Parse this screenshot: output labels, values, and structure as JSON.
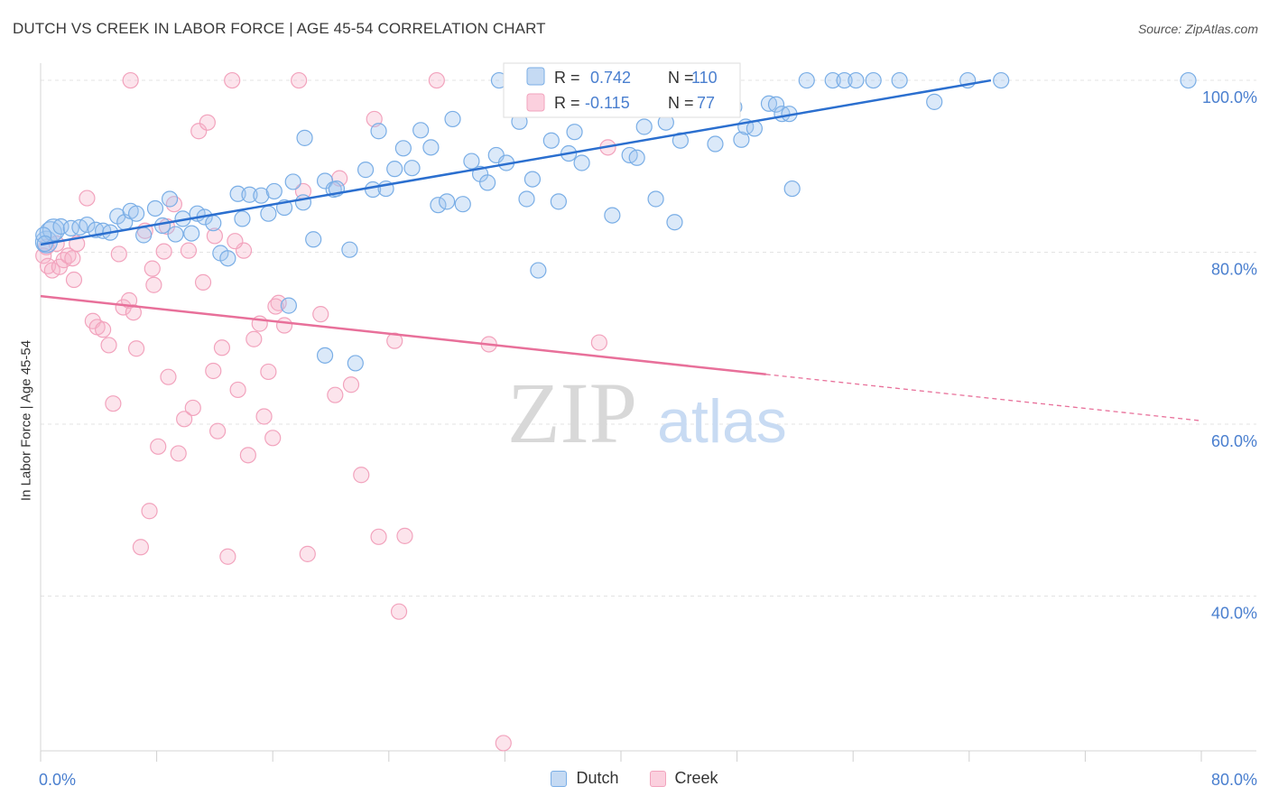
{
  "title": "DUTCH VS CREEK IN LABOR FORCE | AGE 45-54 CORRELATION CHART",
  "source": "Source: ZipAtlas.com",
  "watermark": {
    "zip": "ZIP",
    "atlas": "atlas"
  },
  "chart_data": {
    "type": "scatter",
    "ylabel": "In Labor Force | Age 45-54",
    "xlim": [
      0,
      80
    ],
    "ylim": [
      22,
      102
    ],
    "x_tick_labels": [
      "0.0%",
      "80.0%"
    ],
    "y_ticks": [
      {
        "value": 100,
        "label": "100.0%"
      },
      {
        "value": 80,
        "label": "80.0%"
      },
      {
        "value": 60,
        "label": "60.0%"
      },
      {
        "value": 40,
        "label": "40.0%"
      }
    ],
    "grid": true,
    "colors": {
      "dutch": "#7aaee6",
      "creek": "#f2a3bd",
      "dutch_line": "#2b6fcf",
      "creek_line": "#e8709a",
      "tick_text": "#4a7fcf"
    },
    "legend_stats": [
      {
        "series": "dutch",
        "r_label": "R =",
        "r_value": "0.742",
        "n_label": "N =",
        "n_value": "110"
      },
      {
        "series": "creek",
        "r_label": "R =",
        "r_value": "-0.115",
        "n_label": "N =",
        "n_value": "77"
      }
    ],
    "bottom_legend": [
      "Dutch",
      "Creek"
    ],
    "series": [
      {
        "name": "Dutch",
        "trend": {
          "x1": 0,
          "y1": 80.9,
          "x2": 65.5,
          "y2": 100.0
        },
        "points": [
          [
            0.4,
            81.2
          ],
          [
            0.7,
            82.3
          ],
          [
            0.9,
            82.6
          ],
          [
            1.4,
            83.0
          ],
          [
            2.1,
            82.8
          ],
          [
            2.7,
            82.9
          ],
          [
            3.2,
            83.2
          ],
          [
            3.8,
            82.6
          ],
          [
            4.3,
            82.5
          ],
          [
            4.8,
            82.3
          ],
          [
            5.3,
            84.2
          ],
          [
            5.8,
            83.5
          ],
          [
            6.2,
            84.8
          ],
          [
            6.6,
            84.5
          ],
          [
            7.1,
            82.0
          ],
          [
            7.9,
            85.1
          ],
          [
            8.4,
            83.1
          ],
          [
            8.9,
            86.2
          ],
          [
            9.3,
            82.1
          ],
          [
            9.8,
            83.9
          ],
          [
            10.4,
            82.2
          ],
          [
            10.8,
            84.5
          ],
          [
            11.3,
            84.1
          ],
          [
            11.9,
            83.4
          ],
          [
            12.4,
            79.9
          ],
          [
            12.9,
            79.3
          ],
          [
            13.6,
            86.8
          ],
          [
            13.9,
            83.9
          ],
          [
            14.4,
            86.7
          ],
          [
            15.2,
            86.6
          ],
          [
            15.7,
            84.5
          ],
          [
            16.1,
            87.1
          ],
          [
            16.8,
            85.2
          ],
          [
            17.4,
            88.2
          ],
          [
            18.1,
            85.8
          ],
          [
            18.2,
            93.3
          ],
          [
            18.8,
            81.5
          ],
          [
            19.6,
            88.3
          ],
          [
            20.2,
            87.3
          ],
          [
            20.4,
            87.4
          ],
          [
            21.3,
            80.3
          ],
          [
            22.4,
            89.6
          ],
          [
            22.9,
            87.3
          ],
          [
            23.3,
            94.1
          ],
          [
            23.8,
            87.4
          ],
          [
            24.4,
            89.7
          ],
          [
            25.0,
            92.1
          ],
          [
            25.6,
            89.8
          ],
          [
            26.2,
            94.2
          ],
          [
            26.9,
            92.2
          ],
          [
            27.4,
            85.5
          ],
          [
            28.0,
            85.9
          ],
          [
            28.4,
            95.5
          ],
          [
            29.1,
            85.6
          ],
          [
            29.7,
            90.6
          ],
          [
            30.3,
            89.1
          ],
          [
            30.8,
            88.1
          ],
          [
            31.4,
            91.3
          ],
          [
            31.6,
            100.0
          ],
          [
            32.1,
            90.4
          ],
          [
            33.0,
            95.2
          ],
          [
            33.5,
            86.2
          ],
          [
            33.9,
            88.5
          ],
          [
            34.3,
            77.9
          ],
          [
            35.2,
            93.0
          ],
          [
            35.7,
            85.9
          ],
          [
            36.4,
            91.5
          ],
          [
            36.8,
            94.0
          ],
          [
            37.3,
            90.4
          ],
          [
            37.7,
            100.0
          ],
          [
            38.5,
            100.0
          ],
          [
            39.0,
            99.8
          ],
          [
            39.4,
            84.3
          ],
          [
            40.3,
            100.0
          ],
          [
            40.6,
            91.3
          ],
          [
            41.1,
            91.0
          ],
          [
            41.6,
            94.6
          ],
          [
            42.4,
            86.2
          ],
          [
            43.1,
            95.1
          ],
          [
            43.7,
            83.5
          ],
          [
            44.1,
            93.0
          ],
          [
            44.9,
            100.0
          ],
          [
            45.5,
            97.1
          ],
          [
            45.9,
            97.0
          ],
          [
            46.5,
            92.6
          ],
          [
            47.0,
            99.2
          ],
          [
            47.8,
            96.9
          ],
          [
            48.3,
            93.1
          ],
          [
            48.6,
            94.6
          ],
          [
            49.2,
            94.4
          ],
          [
            50.2,
            97.3
          ],
          [
            50.7,
            97.2
          ],
          [
            51.1,
            96.1
          ],
          [
            51.6,
            96.1
          ],
          [
            51.8,
            87.4
          ],
          [
            52.8,
            100.0
          ],
          [
            54.6,
            100.0
          ],
          [
            55.4,
            100.0
          ],
          [
            56.2,
            100.0
          ],
          [
            57.4,
            100.0
          ],
          [
            59.2,
            100.0
          ],
          [
            61.6,
            97.5
          ],
          [
            63.9,
            100.0
          ],
          [
            66.2,
            100.0
          ],
          [
            79.1,
            100.0
          ],
          [
            0.2,
            82.0
          ],
          [
            17.1,
            73.8
          ],
          [
            19.6,
            68.0
          ],
          [
            21.7,
            67.1
          ],
          [
            0.3,
            81.0
          ]
        ]
      },
      {
        "name": "Creek",
        "trend": {
          "x1": 0,
          "y1": 74.9,
          "x2": 50.0,
          "y2": 65.8,
          "x3": 80,
          "y3": 60.4
        },
        "points": [
          [
            0.2,
            79.6
          ],
          [
            0.5,
            78.4
          ],
          [
            0.8,
            77.9
          ],
          [
            1.1,
            81.0
          ],
          [
            1.3,
            78.3
          ],
          [
            1.6,
            79.1
          ],
          [
            1.9,
            79.6
          ],
          [
            2.2,
            79.3
          ],
          [
            2.3,
            76.8
          ],
          [
            2.5,
            81.0
          ],
          [
            3.2,
            86.3
          ],
          [
            3.6,
            72.0
          ],
          [
            3.9,
            71.3
          ],
          [
            4.3,
            71.0
          ],
          [
            4.7,
            69.2
          ],
          [
            5.0,
            62.4
          ],
          [
            5.4,
            79.8
          ],
          [
            5.7,
            73.6
          ],
          [
            6.1,
            74.4
          ],
          [
            6.2,
            100.0
          ],
          [
            6.6,
            68.8
          ],
          [
            6.9,
            45.7
          ],
          [
            7.2,
            82.5
          ],
          [
            7.5,
            49.9
          ],
          [
            7.8,
            76.2
          ],
          [
            8.1,
            57.4
          ],
          [
            8.5,
            80.1
          ],
          [
            8.8,
            65.5
          ],
          [
            9.2,
            85.6
          ],
          [
            9.5,
            56.6
          ],
          [
            9.9,
            60.6
          ],
          [
            10.2,
            80.2
          ],
          [
            10.5,
            61.9
          ],
          [
            10.9,
            94.1
          ],
          [
            11.2,
            76.5
          ],
          [
            11.5,
            95.1
          ],
          [
            11.9,
            66.2
          ],
          [
            12.2,
            59.2
          ],
          [
            12.5,
            68.9
          ],
          [
            12.9,
            44.6
          ],
          [
            13.2,
            100.0
          ],
          [
            13.6,
            64.0
          ],
          [
            14.0,
            80.2
          ],
          [
            14.3,
            56.4
          ],
          [
            14.7,
            69.9
          ],
          [
            15.1,
            71.7
          ],
          [
            15.4,
            60.9
          ],
          [
            15.7,
            66.1
          ],
          [
            16.0,
            58.4
          ],
          [
            16.4,
            74.1
          ],
          [
            16.8,
            71.5
          ],
          [
            18.1,
            87.1
          ],
          [
            18.4,
            44.9
          ],
          [
            19.3,
            72.8
          ],
          [
            20.3,
            63.4
          ],
          [
            20.6,
            88.6
          ],
          [
            21.4,
            64.6
          ],
          [
            22.1,
            54.1
          ],
          [
            23.0,
            95.5
          ],
          [
            23.3,
            46.9
          ],
          [
            24.4,
            69.7
          ],
          [
            24.7,
            38.2
          ],
          [
            25.1,
            47.0
          ],
          [
            27.3,
            100.0
          ],
          [
            30.9,
            69.3
          ],
          [
            31.9,
            22.9
          ],
          [
            38.5,
            69.5
          ],
          [
            39.1,
            92.2
          ],
          [
            45.1,
            100.0
          ],
          [
            17.8,
            100.0
          ],
          [
            6.4,
            73.0
          ],
          [
            7.7,
            78.1
          ],
          [
            0.4,
            80.6
          ],
          [
            12.0,
            81.9
          ],
          [
            16.2,
            73.7
          ],
          [
            8.7,
            83.0
          ],
          [
            13.4,
            81.3
          ]
        ]
      }
    ]
  }
}
